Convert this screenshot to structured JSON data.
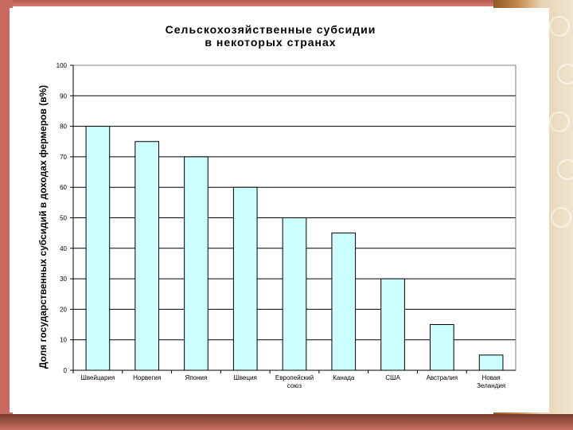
{
  "chart_data": {
    "type": "bar",
    "title": "Сельскохозяйственные субсидии в некоторых странах",
    "title_lines": [
      "Сельскохозяйственные субсидии",
      "в некоторых странах"
    ],
    "ylabel": "Доля государственных субсидий в доходах фермеров (в%)",
    "xlabel": "",
    "categories": [
      "Швейцария",
      "Норвегия",
      "Япония",
      "Швеция",
      "Европейский союз",
      "Канада",
      "США",
      "Австралия",
      "Новая Зеландия"
    ],
    "category_lines": [
      [
        "Швейцария"
      ],
      [
        "Норвегия"
      ],
      [
        "Япония"
      ],
      [
        "Швеция"
      ],
      [
        "Европейский",
        "союз"
      ],
      [
        "Канада"
      ],
      [
        "США"
      ],
      [
        "Австралия"
      ],
      [
        "Новая",
        "Зеландия"
      ]
    ],
    "values": [
      80,
      75,
      70,
      60,
      50,
      45,
      30,
      15,
      5
    ],
    "ylim": [
      0,
      100
    ],
    "yticks": [
      0,
      10,
      20,
      30,
      40,
      50,
      60,
      70,
      80,
      90,
      100
    ],
    "grid": true,
    "legend": "none",
    "colors": {
      "bar_fill": "#ccffff",
      "bar_stroke": "#000000",
      "gridline": "#000000",
      "text": "#000000"
    }
  }
}
